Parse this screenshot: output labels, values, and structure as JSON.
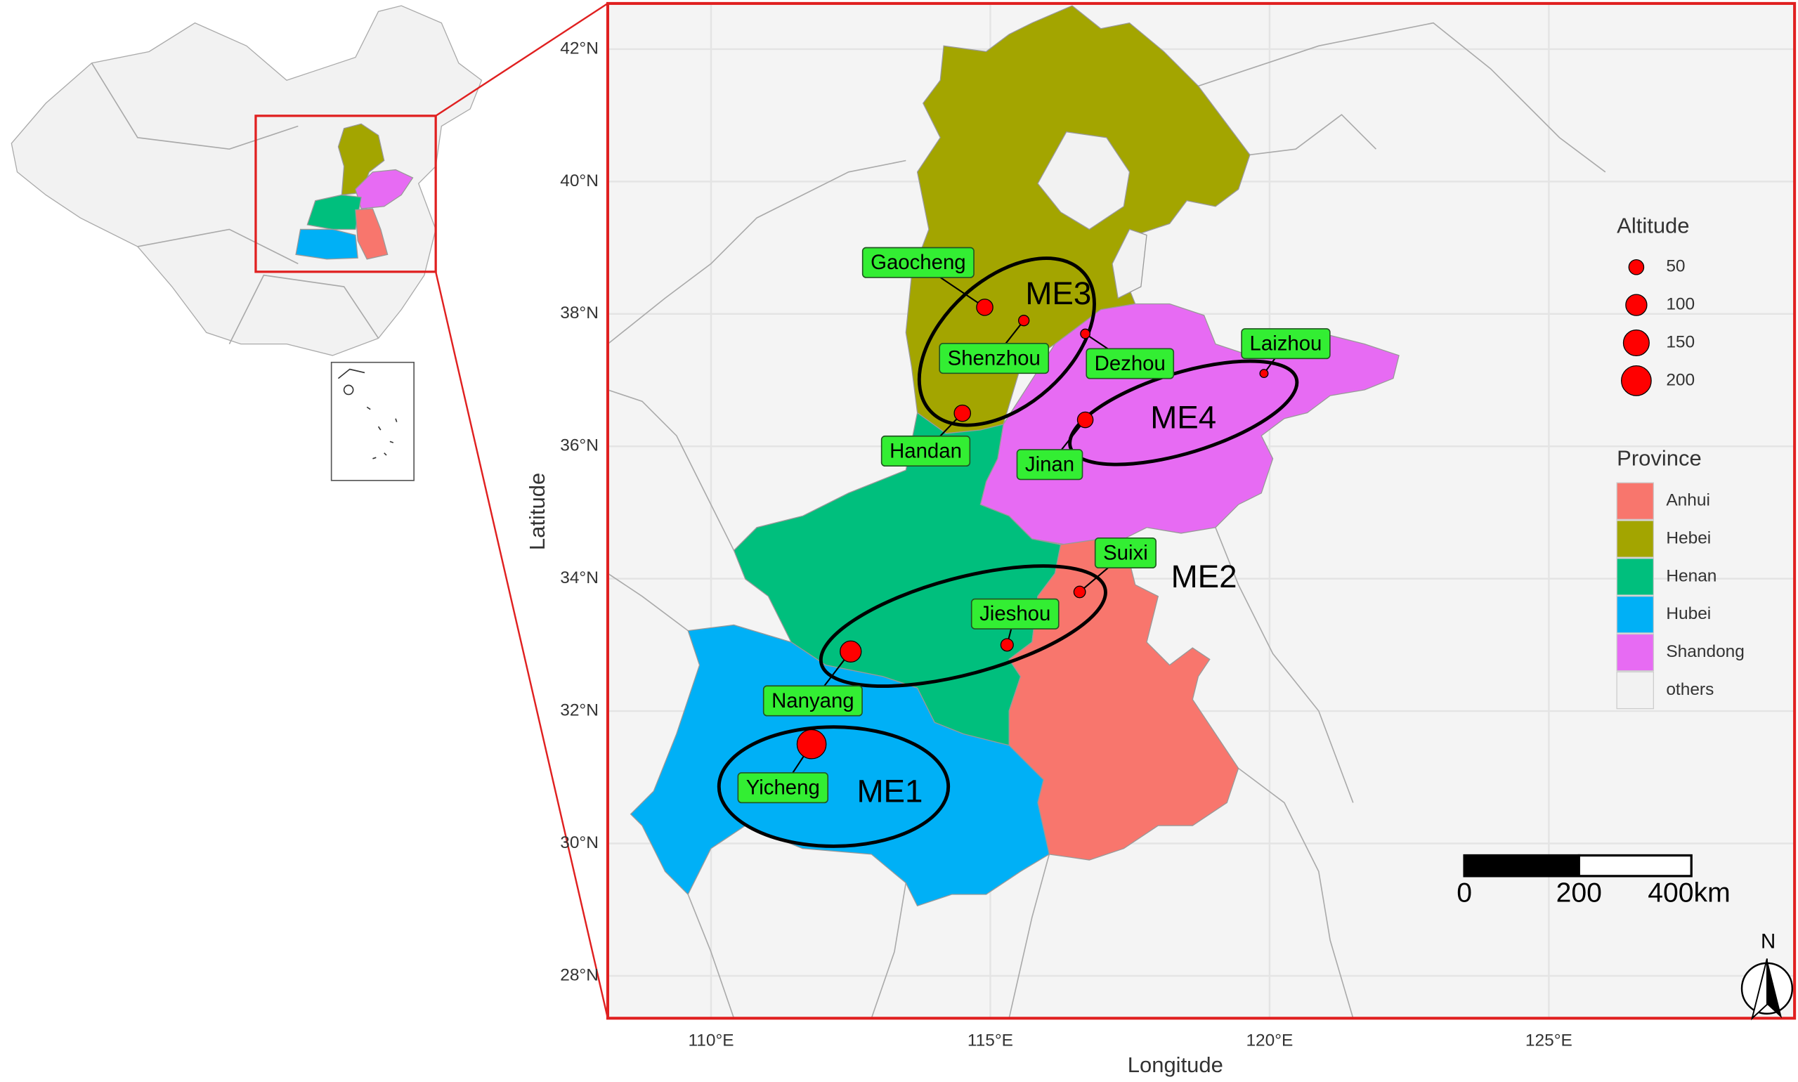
{
  "map": {
    "xlabel": "Longitude",
    "ylabel": "Latitude",
    "xlim": [
      108.15,
      129.4
    ],
    "ylim": [
      27.36,
      42.69
    ],
    "xticks": [
      {
        "value": 110,
        "label": "110°E"
      },
      {
        "value": 115,
        "label": "115°E"
      },
      {
        "value": 120,
        "label": "120°E"
      },
      {
        "value": 125,
        "label": "125°E"
      }
    ],
    "yticks": [
      {
        "value": 28,
        "label": "28°N"
      },
      {
        "value": 30,
        "label": "30°N"
      },
      {
        "value": 32,
        "label": "32°N"
      },
      {
        "value": 34,
        "label": "34°N"
      },
      {
        "value": 36,
        "label": "36°N"
      },
      {
        "value": 38,
        "label": "38°N"
      },
      {
        "value": 40,
        "label": "40°N"
      },
      {
        "value": 42,
        "label": "42°N"
      }
    ],
    "sites": [
      {
        "name": "Gaocheng",
        "lon": 114.9,
        "lat": 38.1,
        "altitude": 60
      },
      {
        "name": "Shenzhou",
        "lon": 115.6,
        "lat": 37.9,
        "altitude": 25
      },
      {
        "name": "Dezhou",
        "lon": 116.7,
        "lat": 37.7,
        "altitude": 20
      },
      {
        "name": "Handan",
        "lon": 114.5,
        "lat": 36.5,
        "altitude": 60
      },
      {
        "name": "Jinan",
        "lon": 116.7,
        "lat": 36.4,
        "altitude": 55
      },
      {
        "name": "Laizhou",
        "lon": 119.9,
        "lat": 37.1,
        "altitude": 15
      },
      {
        "name": "Suixi",
        "lon": 116.6,
        "lat": 33.8,
        "altitude": 30
      },
      {
        "name": "Jieshou",
        "lon": 115.3,
        "lat": 33.0,
        "altitude": 35
      },
      {
        "name": "Nanyang",
        "lon": 112.5,
        "lat": 32.9,
        "altitude": 100
      },
      {
        "name": "Yicheng",
        "lon": 111.8,
        "lat": 31.5,
        "altitude": 190
      }
    ],
    "environments": [
      "ME1",
      "ME2",
      "ME3",
      "ME4"
    ],
    "altitude_legend": {
      "title": "Altitude",
      "values": [
        50,
        100,
        150,
        200
      ],
      "color": "#ff0000"
    },
    "province_legend": {
      "title": "Province",
      "names": [
        "Anhui",
        "Hebei",
        "Henan",
        "Hubei",
        "Shandong",
        "others"
      ],
      "colors": [
        "#f8766d",
        "#a3a500",
        "#00bf7d",
        "#00b0f6",
        "#e76bf3",
        "#f2f2f2"
      ]
    },
    "scale_bar": {
      "labels": [
        "0",
        "200",
        "400km"
      ]
    },
    "north": "N"
  }
}
